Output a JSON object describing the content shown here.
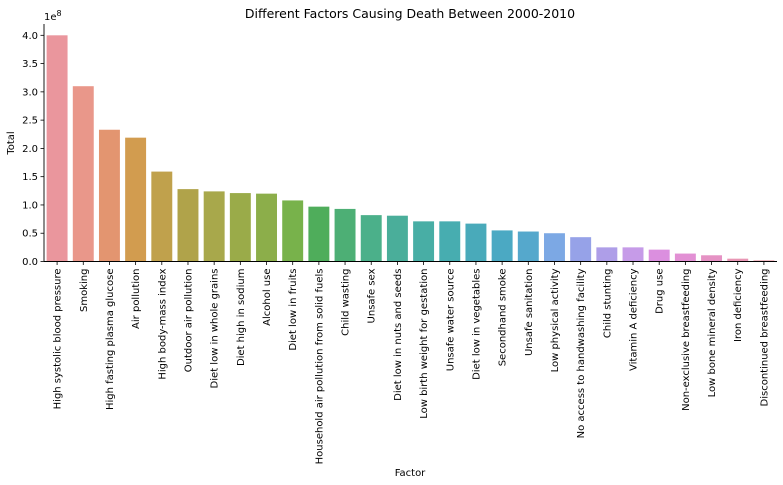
{
  "chart_data": {
    "type": "bar",
    "title": "Different Factors Causing Death Between 2000-2010",
    "xlabel": "Factor",
    "ylabel": "Total",
    "y_offset_label": "1e8",
    "ylim": [
      0,
      4.2
    ],
    "yticks": [
      "0.0",
      "0.5",
      "1.0",
      "1.5",
      "2.0",
      "2.5",
      "3.0",
      "3.5",
      "4.0"
    ],
    "grid": false,
    "categories": [
      "High systolic blood pressure",
      "Smoking",
      "High fasting plasma glucose",
      "Air pollution",
      "High body-mass index",
      "Outdoor air pollution",
      "Diet low in whole grains",
      "Diet high in sodium",
      "Alcohol use",
      "Diet low in fruits",
      "Household air pollution from solid fuels",
      "Child wasting",
      "Unsafe sex",
      "Diet low in nuts and seeds",
      "Low birth weight for gestation",
      "Unsafe water source",
      "Diet low in vegetables",
      "Secondhand smoke",
      "Unsafe sanitation",
      "Low physical activity",
      "No access to handwashing facility",
      "Child stunting",
      "Vitamin A deficiency",
      "Drug use",
      "Non-exclusive breastfeeding",
      "Low bone mineral density",
      "Iron deficiency",
      "Discontinued breastfeeding"
    ],
    "values": [
      4.0,
      3.1,
      2.33,
      2.19,
      1.59,
      1.28,
      1.24,
      1.21,
      1.2,
      1.08,
      0.97,
      0.93,
      0.82,
      0.81,
      0.71,
      0.71,
      0.67,
      0.55,
      0.53,
      0.5,
      0.43,
      0.25,
      0.25,
      0.21,
      0.14,
      0.11,
      0.05,
      0.02
    ],
    "colors": [
      "#ea969d",
      "#e9978a",
      "#e39570",
      "#d29c4f",
      "#c0a14c",
      "#b0a34a",
      "#a8a84b",
      "#9aab49",
      "#8cae4a",
      "#78b24b",
      "#4fad5b",
      "#4daf75",
      "#4bb08a",
      "#4aae9a",
      "#48aea5",
      "#47adb0",
      "#49aaba",
      "#4ba9c3",
      "#55a8cc",
      "#7ca8e4",
      "#96a2e8",
      "#ae9ee8",
      "#c69be8",
      "#db8fdf",
      "#e290d4",
      "#e592c4",
      "#e896b4",
      "#e998a4"
    ]
  }
}
